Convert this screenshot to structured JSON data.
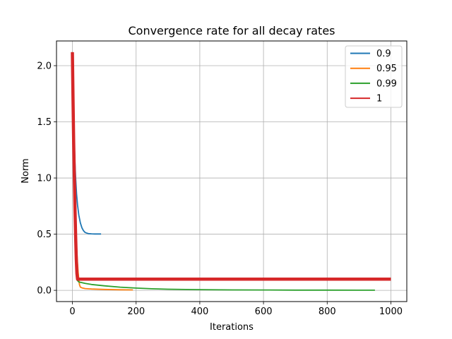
{
  "chart_data": {
    "type": "line",
    "title": "Convergence rate for all decay rates",
    "xlabel": "Iterations",
    "ylabel": "Norm",
    "xlim": [
      -50,
      1050
    ],
    "ylim": [
      -0.1,
      2.22
    ],
    "xticks": [
      0,
      200,
      400,
      600,
      800,
      1000
    ],
    "yticks": [
      0.0,
      0.5,
      1.0,
      1.5,
      2.0
    ],
    "xtick_labels": [
      "0",
      "200",
      "400",
      "600",
      "800",
      "1000"
    ],
    "ytick_labels": [
      "0.0",
      "0.5",
      "1.0",
      "1.5",
      "2.0"
    ],
    "grid": true,
    "legend_position": "top-right",
    "series": [
      {
        "name": "0.9",
        "color": "#1f77b4",
        "x": [
          0,
          2,
          4,
          6,
          8,
          10,
          13,
          16,
          20,
          25,
          30,
          35,
          40,
          50,
          60,
          70,
          80,
          90
        ],
        "y": [
          2.12,
          1.78,
          1.51,
          1.3,
          1.13,
          1.0,
          0.86,
          0.76,
          0.67,
          0.6,
          0.555,
          0.53,
          0.515,
          0.505,
          0.503,
          0.502,
          0.502,
          0.502
        ]
      },
      {
        "name": "0.95",
        "color": "#ff7f0e",
        "x": [
          0,
          2,
          4,
          6,
          8,
          10,
          12,
          14,
          16,
          18,
          20,
          22,
          25,
          30,
          40,
          60,
          100,
          150,
          190
        ],
        "y": [
          2.12,
          1.7,
          1.35,
          1.05,
          0.82,
          0.62,
          0.47,
          0.34,
          0.24,
          0.16,
          0.1,
          0.05,
          0.028,
          0.022,
          0.016,
          0.012,
          0.008,
          0.005,
          0.004
        ]
      },
      {
        "name": "0.99",
        "color": "#2ca02c",
        "x": [
          0,
          2,
          4,
          6,
          8,
          10,
          12,
          15,
          20,
          40,
          60,
          100,
          150,
          200,
          250,
          300,
          400,
          500,
          600,
          700,
          800,
          900,
          950
        ],
        "y": [
          2.12,
          1.65,
          1.25,
          0.92,
          0.65,
          0.43,
          0.24,
          0.09,
          0.075,
          0.062,
          0.052,
          0.04,
          0.028,
          0.02,
          0.014,
          0.01,
          0.006,
          0.004,
          0.003,
          0.002,
          0.002,
          0.001,
          0.001
        ]
      },
      {
        "name": "1",
        "color": "#d62728",
        "x": [
          0,
          2,
          4,
          6,
          8,
          10,
          12,
          14,
          16,
          20,
          50,
          100,
          200,
          400,
          600,
          800,
          1000
        ],
        "y": [
          2.12,
          1.7,
          1.32,
          1.0,
          0.72,
          0.48,
          0.28,
          0.15,
          0.1,
          0.1,
          0.1,
          0.1,
          0.1,
          0.1,
          0.1,
          0.1,
          0.1
        ]
      }
    ]
  }
}
